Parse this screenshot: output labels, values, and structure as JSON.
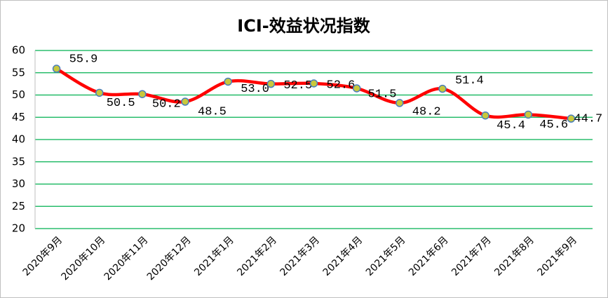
{
  "chart_data": {
    "type": "line",
    "title": "ICI-效益状况指数",
    "categories": [
      "2020年9月",
      "2020年10月",
      "2020年11月",
      "2020年12月",
      "2021年1月",
      "2021年2月",
      "2021年3月",
      "2021年4月",
      "2021年5月",
      "2021年6月",
      "2021年7月",
      "2021年8月",
      "2021年9月"
    ],
    "values": [
      55.9,
      50.5,
      50.2,
      48.5,
      53.0,
      52.5,
      52.6,
      51.5,
      48.2,
      51.4,
      45.4,
      45.6,
      44.7
    ],
    "value_labels": [
      "55.9",
      "50.5",
      "50.2",
      "48.5",
      "53.0",
      "52.5",
      "52.6",
      "51.5",
      "48.2",
      "51.4",
      "45.4",
      "45.6",
      "44.7"
    ],
    "color": "#ff0000",
    "marker_color": "#c8c83c",
    "ylim": [
      20,
      60
    ],
    "yticks": [
      20,
      25,
      30,
      35,
      40,
      45,
      50,
      55,
      60
    ],
    "grid": true,
    "grid_color": "#00b050"
  }
}
